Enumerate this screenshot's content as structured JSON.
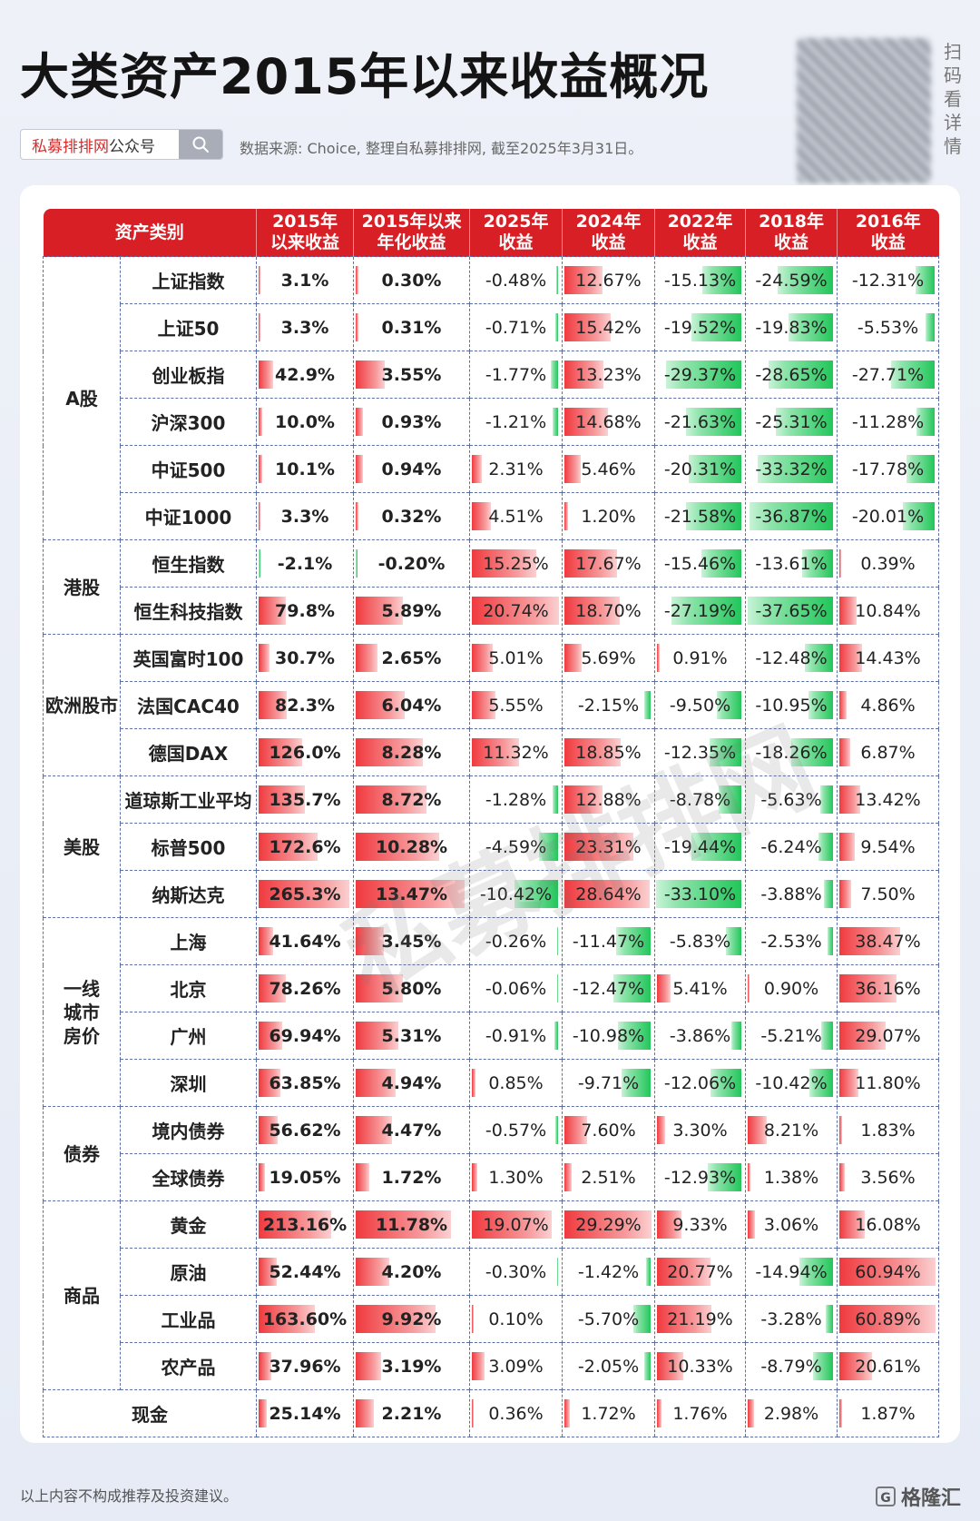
{
  "title": "大类资产2015年以来收益概况",
  "brand": {
    "name_red": "私募排排网",
    "name_rest": "公众号"
  },
  "source_note": "数据来源: Choice, 整理自私募排排网, 截至2025年3月31日。",
  "scan_text": [
    "扫",
    "码",
    "看",
    "详",
    "情"
  ],
  "watermark": "私募排排网",
  "footer_note": "以上内容不构成推荐及投资建议。",
  "logo_text": "格隆汇",
  "colors": {
    "header_bg": "#d81f25",
    "positive": "#f03a3f",
    "negative": "#22c65a"
  },
  "headers": [
    [
      "资产类别"
    ],
    [
      "2015年",
      "以来收益"
    ],
    [
      "2015年以来",
      "年化收益"
    ],
    [
      "2025年",
      "收益"
    ],
    [
      "2024年",
      "收益"
    ],
    [
      "2022年",
      "收益"
    ],
    [
      "2018年",
      "收益"
    ],
    [
      "2016年",
      "收益"
    ]
  ],
  "groups": [
    {
      "name": [
        "A股"
      ],
      "rows": [
        {
          "asset": "上证指数",
          "values": [
            "3.1%",
            "0.30%",
            "-0.48%",
            "12.67%",
            "-15.13%",
            "-24.59%",
            "-12.31%"
          ]
        },
        {
          "asset": "上证50",
          "values": [
            "3.3%",
            "0.31%",
            "-0.71%",
            "15.42%",
            "-19.52%",
            "-19.83%",
            "-5.53%"
          ]
        },
        {
          "asset": "创业板指",
          "values": [
            "42.9%",
            "3.55%",
            "-1.77%",
            "13.23%",
            "-29.37%",
            "-28.65%",
            "-27.71%"
          ]
        },
        {
          "asset": "沪深300",
          "values": [
            "10.0%",
            "0.93%",
            "-1.21%",
            "14.68%",
            "-21.63%",
            "-25.31%",
            "-11.28%"
          ]
        },
        {
          "asset": "中证500",
          "values": [
            "10.1%",
            "0.94%",
            "2.31%",
            "5.46%",
            "-20.31%",
            "-33.32%",
            "-17.78%"
          ]
        },
        {
          "asset": "中证1000",
          "values": [
            "3.3%",
            "0.32%",
            "4.51%",
            "1.20%",
            "-21.58%",
            "-36.87%",
            "-20.01%"
          ]
        }
      ]
    },
    {
      "name": [
        "港股"
      ],
      "rows": [
        {
          "asset": "恒生指数",
          "values": [
            "-2.1%",
            "-0.20%",
            "15.25%",
            "17.67%",
            "-15.46%",
            "-13.61%",
            "0.39%"
          ]
        },
        {
          "asset": "恒生科技指数",
          "values": [
            "79.8%",
            "5.89%",
            "20.74%",
            "18.70%",
            "-27.19%",
            "-37.65%",
            "10.84%"
          ]
        }
      ]
    },
    {
      "name": [
        "欧洲股市"
      ],
      "rows": [
        {
          "asset": "英国富时100",
          "values": [
            "30.7%",
            "2.65%",
            "5.01%",
            "5.69%",
            "0.91%",
            "-12.48%",
            "14.43%"
          ]
        },
        {
          "asset": "法国CAC40",
          "values": [
            "82.3%",
            "6.04%",
            "5.55%",
            "-2.15%",
            "-9.50%",
            "-10.95%",
            "4.86%"
          ]
        },
        {
          "asset": "德国DAX",
          "values": [
            "126.0%",
            "8.28%",
            "11.32%",
            "18.85%",
            "-12.35%",
            "-18.26%",
            "6.87%"
          ]
        }
      ]
    },
    {
      "name": [
        "美股"
      ],
      "rows": [
        {
          "asset": "道琼斯工业平均",
          "values": [
            "135.7%",
            "8.72%",
            "-1.28%",
            "12.88%",
            "-8.78%",
            "-5.63%",
            "13.42%"
          ]
        },
        {
          "asset": "标普500",
          "values": [
            "172.6%",
            "10.28%",
            "-4.59%",
            "23.31%",
            "-19.44%",
            "-6.24%",
            "9.54%"
          ]
        },
        {
          "asset": "纳斯达克",
          "values": [
            "265.3%",
            "13.47%",
            "-10.42%",
            "28.64%",
            "-33.10%",
            "-3.88%",
            "7.50%"
          ]
        }
      ]
    },
    {
      "name": [
        "一线",
        "城市",
        "房价"
      ],
      "rows": [
        {
          "asset": "上海",
          "values": [
            "41.64%",
            "3.45%",
            "-0.26%",
            "-11.47%",
            "-5.83%",
            "-2.53%",
            "38.47%"
          ]
        },
        {
          "asset": "北京",
          "values": [
            "78.26%",
            "5.80%",
            "-0.06%",
            "-12.47%",
            "5.41%",
            "0.90%",
            "36.16%"
          ]
        },
        {
          "asset": "广州",
          "values": [
            "69.94%",
            "5.31%",
            "-0.91%",
            "-10.98%",
            "-3.86%",
            "-5.21%",
            "29.07%"
          ]
        },
        {
          "asset": "深圳",
          "values": [
            "63.85%",
            "4.94%",
            "0.85%",
            "-9.71%",
            "-12.06%",
            "-10.42%",
            "11.80%"
          ]
        }
      ]
    },
    {
      "name": [
        "债券"
      ],
      "rows": [
        {
          "asset": "境内债券",
          "values": [
            "56.62%",
            "4.47%",
            "-0.57%",
            "7.60%",
            "3.30%",
            "8.21%",
            "1.83%"
          ]
        },
        {
          "asset": "全球债券",
          "values": [
            "19.05%",
            "1.72%",
            "1.30%",
            "2.51%",
            "-12.93%",
            "1.38%",
            "3.56%"
          ]
        }
      ]
    },
    {
      "name": [
        "商品"
      ],
      "rows": [
        {
          "asset": "黄金",
          "values": [
            "213.16%",
            "11.78%",
            "19.07%",
            "29.29%",
            "9.33%",
            "3.06%",
            "16.08%"
          ]
        },
        {
          "asset": "原油",
          "values": [
            "52.44%",
            "4.20%",
            "-0.30%",
            "-1.42%",
            "20.77%",
            "-14.94%",
            "60.94%"
          ]
        },
        {
          "asset": "工业品",
          "values": [
            "163.60%",
            "9.92%",
            "0.10%",
            "-5.70%",
            "21.19%",
            "-3.28%",
            "60.89%"
          ]
        },
        {
          "asset": "农产品",
          "values": [
            "37.96%",
            "3.19%",
            "3.09%",
            "-2.05%",
            "10.33%",
            "-8.79%",
            "20.61%"
          ]
        }
      ]
    },
    {
      "name": [
        "现金"
      ],
      "merged": true,
      "rows": [
        {
          "asset": "现金",
          "values": [
            "25.14%",
            "2.21%",
            "0.36%",
            "1.72%",
            "1.76%",
            "2.98%",
            "1.87%"
          ]
        }
      ]
    }
  ]
}
